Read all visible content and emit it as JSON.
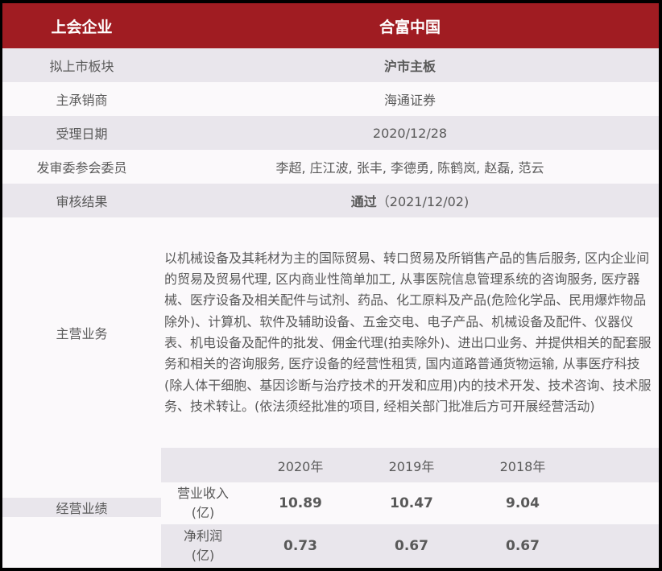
{
  "header": {
    "label": "上会企业",
    "company": "合富中国"
  },
  "rows": [
    {
      "label": "拟上市板块",
      "value": "沪市主板"
    },
    {
      "label": "主承销商",
      "value": "海通证券"
    },
    {
      "label": "受理日期",
      "value": "2020/12/28"
    },
    {
      "label": "发审委参会委员",
      "value": "李超, 庄江波, 张丰, 李德勇, 陈鹤岚, 赵磊, 范云"
    },
    {
      "label": "审核结果",
      "value": "通过",
      "date": "（2021/12/02)"
    }
  ],
  "business": {
    "label": "主营业务",
    "text": "以机械设备及其耗材为主的国际贸易、转口贸易及所销售产品的售后服务, 区内企业间的贸易及贸易代理, 区内商业性简单加工, 从事医院信息管理系统的咨询服务, 医疗器械、医疗设备及相关配件与试剂、药品、化工原料及产品(危险化学品、民用爆炸物品除外)、计算机、软件及辅助设备、五金交电、电子产品、机械设备及配件、仪器仪表、机电设备及配件的批发、佣金代理(拍卖除外)、进出口业务、并提供相关的配套服务和相关的咨询服务, 医疗设备的经营性租赁, 国内道路普通货物运输, 从事医疗科技(除人体干细胞、基因诊断与治疗技术的开发和应用)内的技术开发、技术咨询、技术服务、技术转让。(依法须经批准的项目, 经相关部门批准后方可开展经营活动)"
  },
  "performance": {
    "label": "经营业绩",
    "years": [
      "2020年",
      "2019年",
      "2018年"
    ],
    "metrics": [
      {
        "name": "营业收入",
        "unit": "(亿)",
        "values": [
          "10.89",
          "10.47",
          "9.04"
        ]
      },
      {
        "name": "净利润",
        "unit": "(亿)",
        "values": [
          "0.73",
          "0.67",
          "0.67"
        ]
      }
    ]
  },
  "colors": {
    "header": "#a01c22",
    "stripe": "#e9e6ec"
  }
}
